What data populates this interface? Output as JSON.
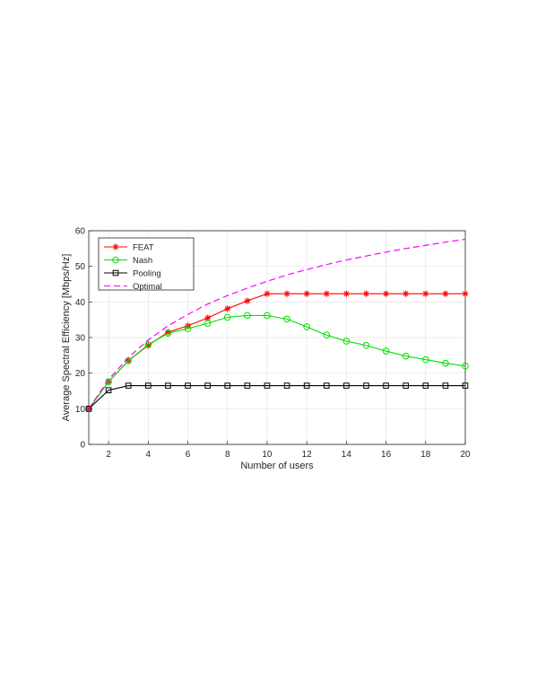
{
  "chart_data": {
    "type": "line",
    "xlabel": "Number of users",
    "ylabel": "Average Spectral Efficiency [Mbps/Hz]",
    "xlim": [
      1,
      20
    ],
    "ylim": [
      0,
      60
    ],
    "xticks": [
      2,
      4,
      6,
      8,
      10,
      12,
      14,
      16,
      18,
      20
    ],
    "yticks": [
      0,
      10,
      20,
      30,
      40,
      50,
      60
    ],
    "grid": true,
    "legend_position": "top-left",
    "series": [
      {
        "name": "FEAT",
        "color": "#ff0000",
        "line_style": "solid",
        "marker": "asterisk",
        "x": [
          1,
          2,
          3,
          4,
          5,
          6,
          7,
          8,
          9,
          10,
          11,
          12,
          13,
          14,
          15,
          16,
          17,
          18,
          19,
          20
        ],
        "values": [
          10,
          17.6,
          23.5,
          27.8,
          31.5,
          33.3,
          35.5,
          38.1,
          40.3,
          42.3,
          42.3,
          42.3,
          42.3,
          42.3,
          42.3,
          42.3,
          42.3,
          42.3,
          42.3,
          42.3
        ]
      },
      {
        "name": "Nash",
        "color": "#00e000",
        "line_style": "solid",
        "marker": "circle",
        "x": [
          1,
          2,
          3,
          4,
          5,
          6,
          7,
          8,
          9,
          10,
          11,
          12,
          13,
          14,
          15,
          16,
          17,
          18,
          19,
          20
        ],
        "values": [
          10,
          17.6,
          23.5,
          28,
          31.2,
          32.5,
          34,
          35.7,
          36.2,
          36.2,
          35.2,
          33,
          30.7,
          29,
          27.8,
          26.2,
          24.8,
          23.8,
          22.8,
          22
        ]
      },
      {
        "name": "Pooling",
        "color": "#000000",
        "line_style": "solid",
        "marker": "square",
        "x": [
          1,
          2,
          3,
          4,
          5,
          6,
          7,
          8,
          9,
          10,
          11,
          12,
          13,
          14,
          15,
          16,
          17,
          18,
          19,
          20
        ],
        "values": [
          10,
          15.2,
          16.5,
          16.5,
          16.5,
          16.5,
          16.5,
          16.5,
          16.5,
          16.5,
          16.5,
          16.5,
          16.5,
          16.5,
          16.5,
          16.5,
          16.5,
          16.5,
          16.5,
          16.5
        ]
      },
      {
        "name": "Optimal",
        "color": "#ff00ff",
        "line_style": "dashed",
        "marker": "none",
        "x": [
          1,
          2,
          3,
          4,
          5,
          6,
          7,
          8,
          9,
          10,
          11,
          12,
          13,
          14,
          15,
          16,
          17,
          18,
          19,
          20
        ],
        "values": [
          10,
          18.2,
          24.4,
          29.3,
          33.3,
          36.5,
          39.4,
          41.8,
          43.9,
          45.8,
          47.6,
          49.1,
          50.5,
          51.8,
          52.9,
          54,
          55,
          55.9,
          56.8,
          57.6
        ]
      }
    ]
  }
}
